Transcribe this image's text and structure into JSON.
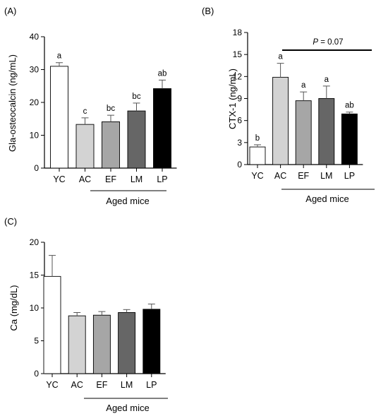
{
  "colors": {
    "YC": "#ffffff",
    "AC": "#d3d3d3",
    "EF": "#a6a6a6",
    "LM": "#666666",
    "LP": "#000000"
  },
  "chart_data": [
    {
      "type": "bar",
      "panel": "(A)",
      "categories": [
        "YC",
        "AC",
        "EF",
        "LM",
        "LP"
      ],
      "values": [
        31,
        13.3,
        14.1,
        17.4,
        24.2
      ],
      "errors": [
        1.1,
        2.0,
        2.0,
        2.4,
        2.6
      ],
      "significance": [
        "a",
        "c",
        "bc",
        "bc",
        "ab"
      ],
      "ylabel": "Gla-osteocalcin (ng/mL)",
      "ylim": [
        0,
        40
      ],
      "yticks": [
        0,
        10,
        20,
        30,
        40
      ],
      "group_label": "Aged mice",
      "annotation": ""
    },
    {
      "type": "bar",
      "panel": "(B)",
      "categories": [
        "YC",
        "AC",
        "EF",
        "LM",
        "LP"
      ],
      "values": [
        2.4,
        11.9,
        8.7,
        9.0,
        6.9
      ],
      "errors": [
        0.3,
        1.9,
        1.2,
        1.7,
        0.25
      ],
      "significance": [
        "b",
        "a",
        "a",
        "a",
        "ab"
      ],
      "ylabel": "CTX-1 (ng/mL)",
      "ylim": [
        0,
        18
      ],
      "yticks": [
        0,
        3,
        6,
        9,
        12,
        15,
        18
      ],
      "group_label": "Aged mice",
      "annotation_p": "P",
      "annotation_val": " = 0.07"
    },
    {
      "type": "bar",
      "panel": "(C)",
      "categories": [
        "YC",
        "AC",
        "EF",
        "LM",
        "LP"
      ],
      "values": [
        14.8,
        8.8,
        8.9,
        9.3,
        9.8
      ],
      "errors": [
        3.2,
        0.5,
        0.55,
        0.45,
        0.8
      ],
      "significance": [
        "",
        "",
        "",
        "",
        ""
      ],
      "ylabel": "Ca (mg/dL)",
      "ylim": [
        0,
        20
      ],
      "yticks": [
        0,
        5,
        10,
        15,
        20
      ],
      "group_label": "Aged mice",
      "annotation": ""
    }
  ]
}
